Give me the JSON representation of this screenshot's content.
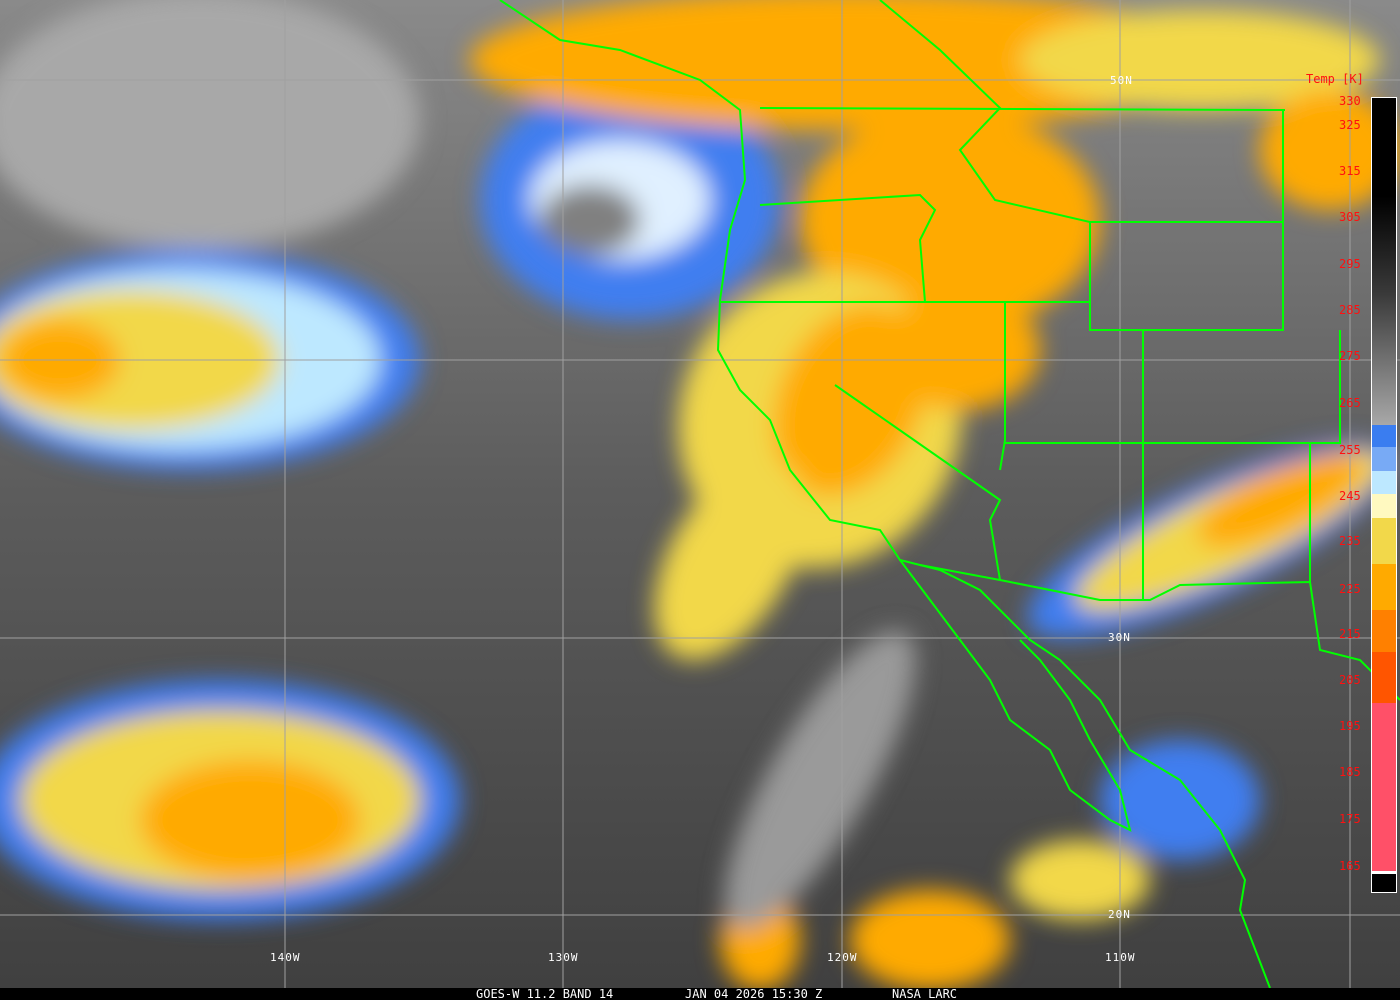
{
  "caption": {
    "satellite": "GOES-W 11.2 BAND 14",
    "datetime": "JAN 04 2026 15:30 Z",
    "credit": "NASA LARC"
  },
  "grid_labels": {
    "lat_50": "50N",
    "lat_30": "30N",
    "lat_20": "20N",
    "lon_140": "140W",
    "lon_130": "130W",
    "lon_120": "120W",
    "lon_110": "110W"
  },
  "colorbar": {
    "title": "Temp [K]",
    "labels": [
      "330",
      "325",
      "315",
      "305",
      "295",
      "285",
      "275",
      "265",
      "255",
      "245",
      "235",
      "225",
      "215",
      "205",
      "195",
      "185",
      "175",
      "165"
    ],
    "segments": [
      {
        "from": 330,
        "to": 255,
        "color": "gradient-gray"
      },
      {
        "color": "#3a7df0"
      },
      {
        "color": "#78aaf5"
      },
      {
        "color": "#bde8ff"
      },
      {
        "color": "#fff9c0"
      },
      {
        "color": "#f2d84a"
      },
      {
        "color": "#ffaa00"
      },
      {
        "color": "#ff8000"
      },
      {
        "color": "#ff5500"
      },
      {
        "color": "#ff5068"
      },
      {
        "color": "#000000"
      }
    ]
  },
  "colors": {
    "borders": "#00ff00",
    "grid": "#a0a0a0",
    "labels_red": "#ff1010"
  }
}
